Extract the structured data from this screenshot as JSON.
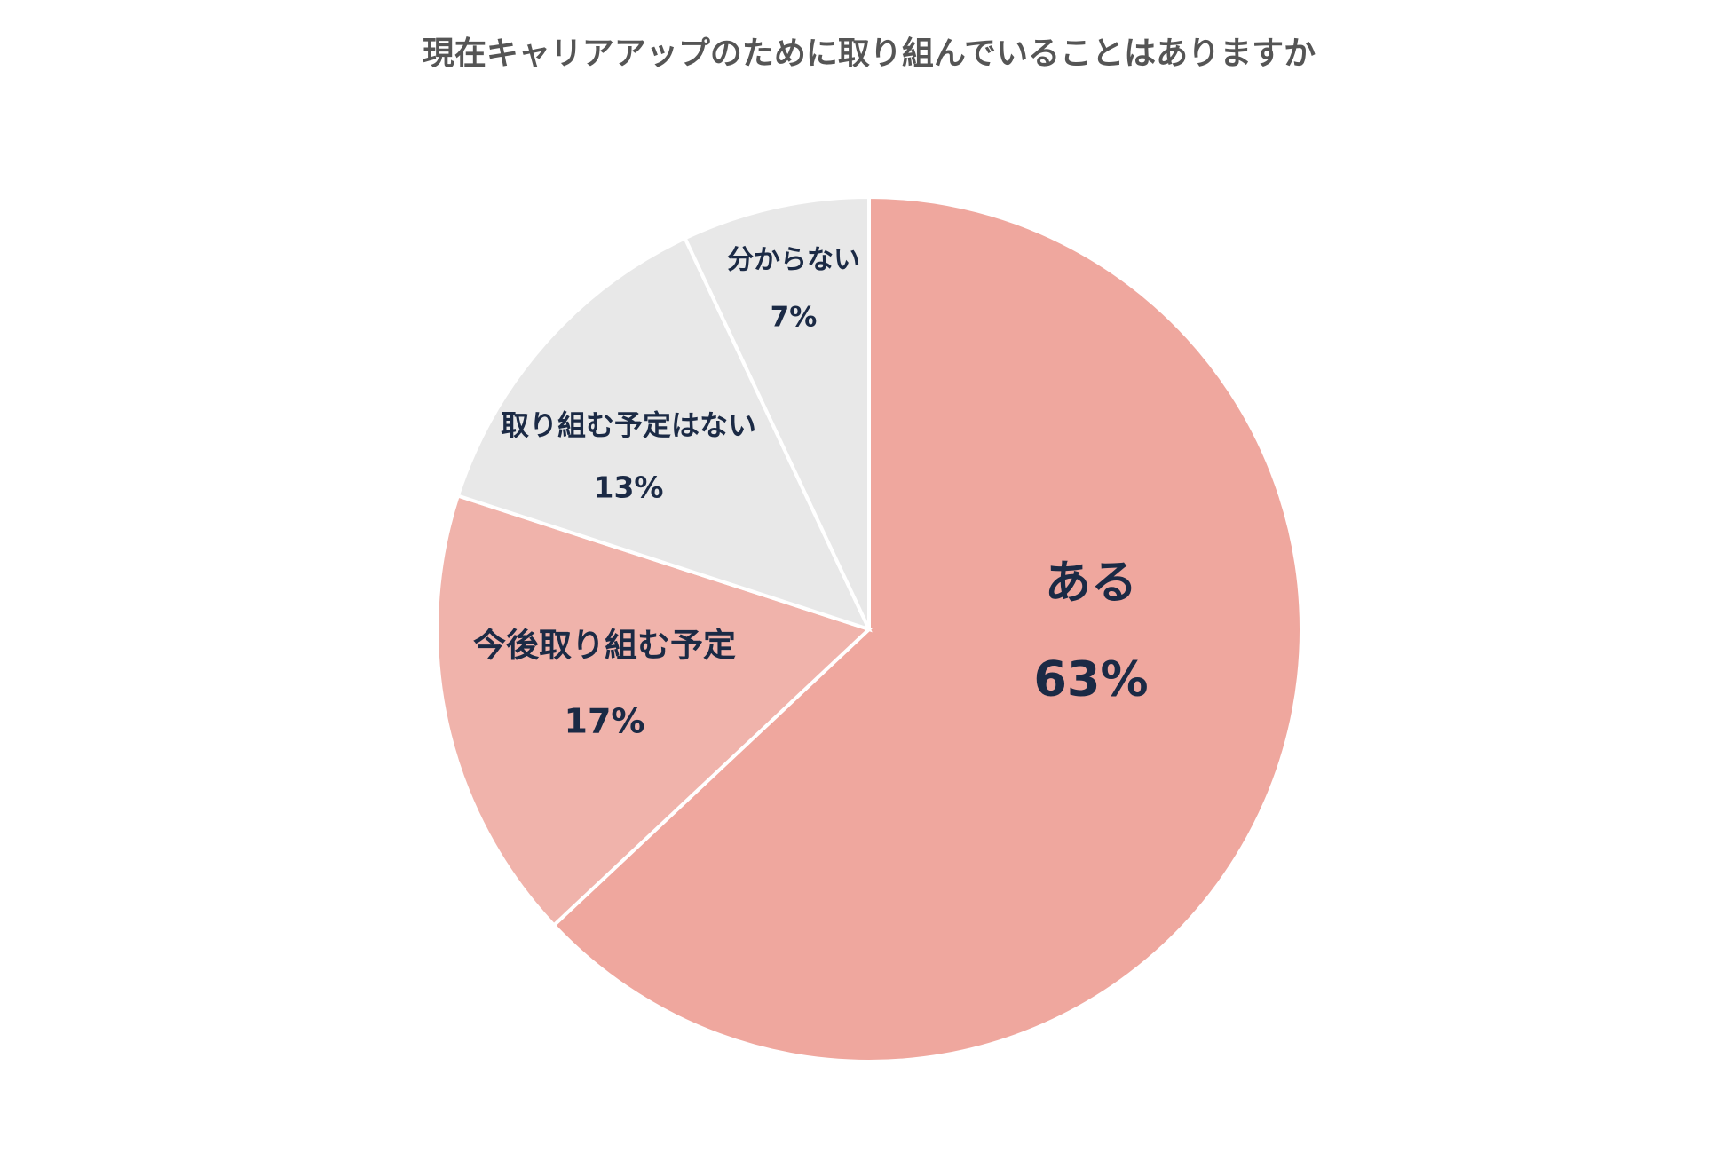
{
  "chart_data": {
    "type": "pie",
    "title": "現在キャリアアップのために取り組んでいることはありますか",
    "categories": [
      "ある",
      "今後取り組む予定",
      "取り組む予定はない",
      "分からない"
    ],
    "values": [
      63,
      17,
      13,
      7
    ],
    "value_labels": [
      "63%",
      "17%",
      "13%",
      "7%"
    ],
    "colors": [
      "#efa79e",
      "#f0b3ab",
      "#e8e8e8",
      "#e8e8e8"
    ]
  }
}
